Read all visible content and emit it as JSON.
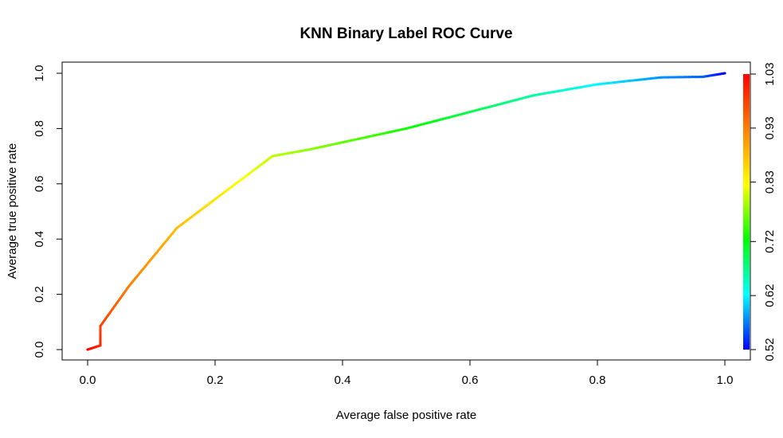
{
  "chart_data": {
    "type": "line",
    "title": "KNN Binary Label ROC Curve",
    "xlabel": "Average false positive rate",
    "ylabel": "Average true positive rate",
    "xlim": [
      0.0,
      1.0
    ],
    "ylim": [
      0.0,
      1.0
    ],
    "x_ticks": [
      "0.0",
      "0.2",
      "0.4",
      "0.6",
      "0.8",
      "1.0"
    ],
    "y_ticks": [
      "0.0",
      "0.2",
      "0.4",
      "0.6",
      "0.8",
      "1.0"
    ],
    "grid": false,
    "colorbar": {
      "label_position": "right",
      "range": [
        0.52,
        1.03
      ],
      "ticks": [
        "0.52",
        "0.62",
        "0.72",
        "0.83",
        "0.93",
        "1.03"
      ],
      "colormap": "rainbow (blue to red)"
    },
    "series": [
      {
        "x": [
          0.0,
          0.02,
          0.02,
          0.065,
          0.14,
          0.29,
          0.35,
          0.5,
          0.7,
          0.8,
          0.9,
          0.965,
          1.0
        ],
        "y": [
          0.0,
          0.015,
          0.085,
          0.23,
          0.44,
          0.7,
          0.725,
          0.8,
          0.92,
          0.96,
          0.985,
          0.987,
          1.0
        ],
        "cutoff": [
          1.03,
          1.0,
          0.98,
          0.93,
          0.88,
          0.8,
          0.78,
          0.73,
          0.66,
          0.62,
          0.58,
          0.56,
          0.52
        ]
      }
    ]
  }
}
